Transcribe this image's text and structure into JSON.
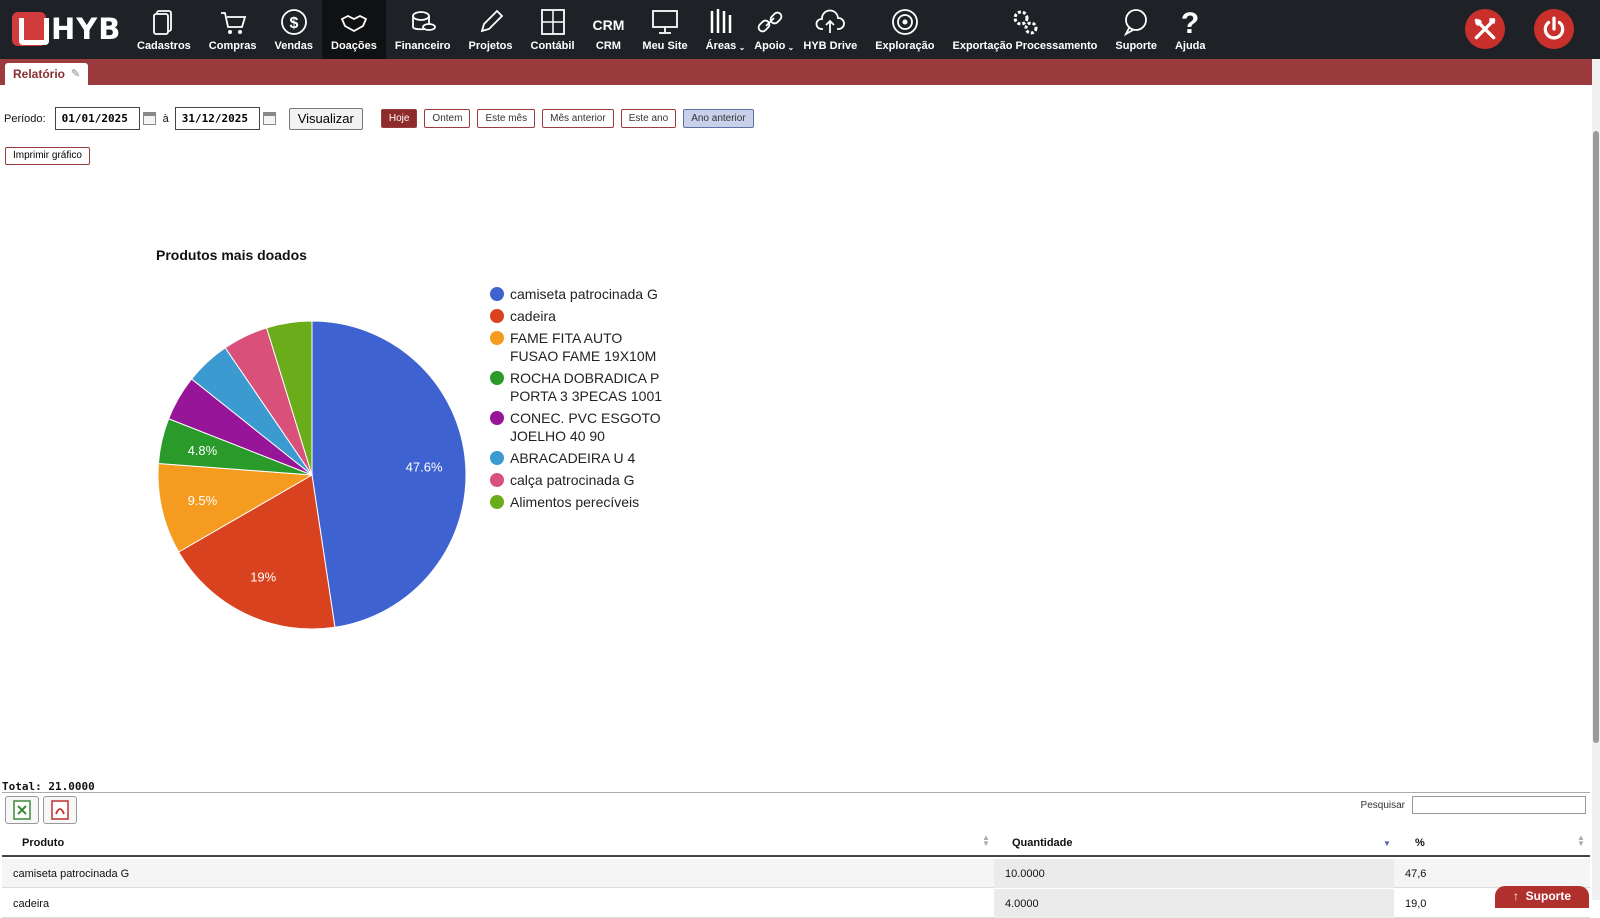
{
  "app": {
    "logo_text": "HYB"
  },
  "nav": [
    {
      "label": "Cadastros",
      "icon": "documents-icon"
    },
    {
      "label": "Compras",
      "icon": "cart-icon"
    },
    {
      "label": "Vendas",
      "icon": "dollar-icon"
    },
    {
      "label": "Doações",
      "icon": "handshake-icon",
      "active": true
    },
    {
      "label": "Financeiro",
      "icon": "coins-icon"
    },
    {
      "label": "Projetos",
      "icon": "pencil-icon"
    },
    {
      "label": "Contábil",
      "icon": "calculator-icon"
    },
    {
      "label": "CRM",
      "icon": "crm-icon",
      "glyph": "CRM"
    },
    {
      "label": "Meu Site",
      "icon": "monitor-icon"
    },
    {
      "label": "Áreas",
      "icon": "areas-icon",
      "dropdown": true
    },
    {
      "label": "Apoio",
      "icon": "link-icon",
      "dropdown": true
    },
    {
      "label": "HYB Drive",
      "icon": "cloud-upload-icon"
    },
    {
      "label": "Exploração",
      "icon": "target-icon"
    },
    {
      "label": "Exportação Processamento",
      "icon": "gears-icon"
    },
    {
      "label": "Suporte",
      "icon": "chat-icon"
    },
    {
      "label": "Ajuda",
      "icon": "question-icon"
    }
  ],
  "tab": {
    "label": "Relatório"
  },
  "filters": {
    "period_label": "Período:",
    "start_date": "01/01/2025",
    "separator": "à",
    "end_date": "31/12/2025",
    "view_button": "Visualizar",
    "quick": [
      "Hoje",
      "Ontem",
      "Este mês",
      "Mês anterior",
      "Este ano",
      "Ano anterior"
    ]
  },
  "print_button": "Imprimir gráfico",
  "chart_data": {
    "type": "pie",
    "title": "Produtos mais doados",
    "categories": [
      "camiseta patrocinada G",
      "cadeira",
      "FAME FITA AUTO FUSAO FAME 19X10M",
      "ROCHA DOBRADICA P PORTA 3 3PECAS 1001",
      "CONEC. PVC ESGOTO JOELHO 40 90",
      "ABRACADEIRA U 4",
      "calça patrocinada G",
      "Alimentos perecíveis"
    ],
    "values": [
      10,
      4,
      2,
      1,
      1,
      1,
      1,
      1
    ],
    "labels": [
      "47.6%",
      "19%",
      "9.5%",
      "4.8%",
      "",
      "",
      "",
      ""
    ],
    "colors": [
      "#3f62d1",
      "#d9421f",
      "#f59b1f",
      "#2a9a2a",
      "#971598",
      "#3b9ad0",
      "#d9507a",
      "#6aac1a"
    ],
    "legend_position": "right"
  },
  "table": {
    "total": "Total: 21.0000",
    "search_label": "Pesquisar",
    "columns": [
      "Produto",
      "Quantidade",
      "%"
    ],
    "rows": [
      [
        "camiseta patrocinada G",
        "10.0000",
        "47,6"
      ],
      [
        "cadeira",
        "4.0000",
        "19,0"
      ]
    ]
  },
  "support_button": "Suporte"
}
